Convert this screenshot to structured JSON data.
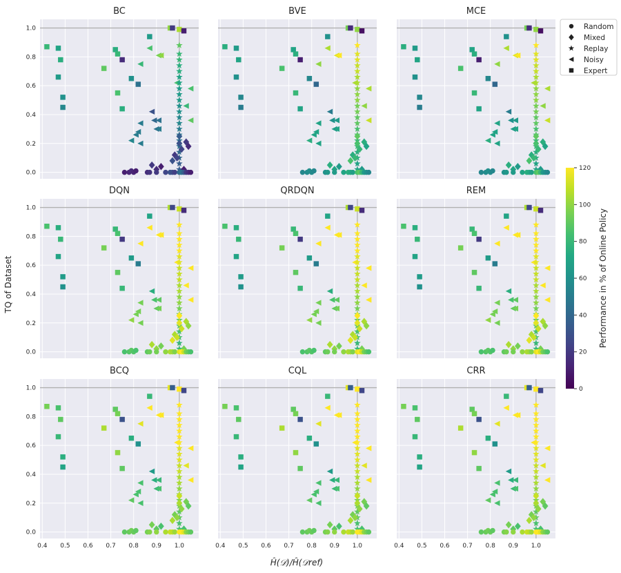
{
  "figure": {
    "ylabel": "TQ of Dataset",
    "xlabel_html": "Ĥ(𝒟)/Ĥ(𝒟ref)",
    "colorbar_label": "Performance in % of Online Policy",
    "colorbar_ticks": [
      0,
      20,
      40,
      60,
      80,
      100,
      120
    ]
  },
  "legend": {
    "entries": [
      {
        "label": "Random",
        "marker": "circle"
      },
      {
        "label": "Mixed",
        "marker": "diamond"
      },
      {
        "label": "Replay",
        "marker": "star"
      },
      {
        "label": "Noisy",
        "marker": "triangle-left"
      },
      {
        "label": "Expert",
        "marker": "square"
      }
    ]
  },
  "chart_data": {
    "type": "scatter",
    "x_ticks": [
      0.4,
      0.5,
      0.6,
      0.7,
      0.8,
      0.9,
      1.0
    ],
    "y_ticks": [
      0.0,
      0.2,
      0.4,
      0.6,
      0.8,
      1.0
    ],
    "xlim": [
      0.39,
      1.085
    ],
    "ylim": [
      -0.045,
      1.06
    ],
    "panels": [
      {
        "title": "BC",
        "scheme": "bc"
      },
      {
        "title": "BVE",
        "scheme": "bve"
      },
      {
        "title": "MCE",
        "scheme": "bve"
      },
      {
        "title": "DQN",
        "scheme": "dqn"
      },
      {
        "title": "QRDQN",
        "scheme": "dqn"
      },
      {
        "title": "REM",
        "scheme": "dqn"
      },
      {
        "title": "BCQ",
        "scheme": "bcq"
      },
      {
        "title": "CQL",
        "scheme": "bcq"
      },
      {
        "title": "CRR",
        "scheme": "bcq"
      }
    ],
    "points": {
      "expert": [
        [
          0.42,
          0.87,
          75
        ],
        [
          0.47,
          0.86,
          65
        ],
        [
          0.48,
          0.78,
          70
        ],
        [
          0.47,
          0.66,
          60
        ],
        [
          0.49,
          0.52,
          55
        ],
        [
          0.49,
          0.45,
          50
        ],
        [
          0.67,
          0.72,
          85
        ],
        [
          0.72,
          0.85,
          70
        ],
        [
          0.73,
          0.82,
          75
        ],
        [
          0.73,
          0.55,
          80
        ],
        [
          0.75,
          0.44,
          70
        ],
        [
          0.75,
          0.78,
          10
        ],
        [
          0.79,
          0.65,
          55
        ],
        [
          0.82,
          0.61,
          40
        ],
        [
          0.87,
          0.94,
          60
        ],
        [
          0.96,
          1.0,
          95
        ],
        [
          0.97,
          1.0,
          15
        ],
        [
          1.0,
          0.99,
          100
        ],
        [
          1.02,
          0.98,
          5
        ]
      ],
      "noisy": [
        [
          0.79,
          0.22,
          45
        ],
        [
          0.81,
          0.26,
          40
        ],
        [
          0.82,
          0.28,
          40
        ],
        [
          0.83,
          0.2,
          40
        ],
        [
          0.83,
          0.34,
          40
        ],
        [
          0.83,
          0.75,
          70
        ],
        [
          0.87,
          0.86,
          75
        ],
        [
          0.88,
          0.42,
          20
        ],
        [
          0.89,
          0.36,
          30
        ],
        [
          0.9,
          0.3,
          35
        ],
        [
          0.91,
          0.3,
          40
        ],
        [
          0.91,
          0.36,
          35
        ],
        [
          0.91,
          0.81,
          85
        ],
        [
          0.92,
          0.81,
          90
        ],
        [
          0.99,
          0.62,
          75
        ],
        [
          1.03,
          0.46,
          70
        ],
        [
          1.05,
          0.58,
          75
        ],
        [
          1.05,
          0.36,
          80
        ]
      ],
      "replay": [
        [
          1.0,
          0.88,
          85
        ],
        [
          1.0,
          0.82,
          75
        ],
        [
          1.0,
          0.78,
          75
        ],
        [
          1.0,
          0.74,
          70
        ],
        [
          1.0,
          0.7,
          70
        ],
        [
          1.0,
          0.66,
          65
        ],
        [
          1.0,
          0.62,
          65
        ],
        [
          1.0,
          0.58,
          60
        ],
        [
          1.0,
          0.54,
          60
        ],
        [
          1.0,
          0.5,
          60
        ],
        [
          1.0,
          0.46,
          55
        ],
        [
          1.0,
          0.42,
          55
        ],
        [
          1.0,
          0.38,
          50
        ],
        [
          1.0,
          0.34,
          50
        ],
        [
          1.0,
          0.3,
          45
        ],
        [
          1.0,
          0.26,
          45
        ],
        [
          1.0,
          0.22,
          40
        ],
        [
          1.0,
          0.18,
          40
        ],
        [
          1.0,
          0.14,
          35
        ],
        [
          1.0,
          0.1,
          35
        ],
        [
          1.0,
          0.06,
          30
        ],
        [
          1.0,
          0.02,
          30
        ]
      ],
      "mixed": [
        [
          0.88,
          0.05,
          20
        ],
        [
          0.9,
          0.02,
          15
        ],
        [
          0.92,
          0.04,
          10
        ],
        [
          0.97,
          0.08,
          30
        ],
        [
          0.98,
          0.12,
          20
        ],
        [
          0.99,
          0.1,
          25
        ],
        [
          1.0,
          0.25,
          35
        ],
        [
          1.0,
          0.2,
          30
        ],
        [
          1.01,
          0.16,
          25
        ],
        [
          1.03,
          0.21,
          20
        ],
        [
          1.04,
          0.18,
          15
        ],
        [
          1.02,
          0.02,
          10
        ]
      ],
      "random": [
        [
          0.76,
          0.0,
          10
        ],
        [
          0.78,
          0.0,
          12
        ],
        [
          0.79,
          0.01,
          14
        ],
        [
          0.8,
          0.0,
          12
        ],
        [
          0.81,
          0.01,
          10
        ],
        [
          0.86,
          0.0,
          15
        ],
        [
          0.87,
          0.0,
          18
        ],
        [
          0.9,
          0.0,
          20
        ],
        [
          0.94,
          0.0,
          25
        ],
        [
          0.96,
          0.0,
          30
        ],
        [
          0.97,
          0.0,
          28
        ],
        [
          0.98,
          0.0,
          22
        ],
        [
          1.0,
          0.0,
          40
        ],
        [
          1.01,
          0.0,
          45
        ],
        [
          1.02,
          0.0,
          35
        ],
        [
          1.03,
          0.0,
          20
        ],
        [
          1.04,
          0.0,
          15
        ],
        [
          1.05,
          0.0,
          10
        ]
      ]
    }
  }
}
